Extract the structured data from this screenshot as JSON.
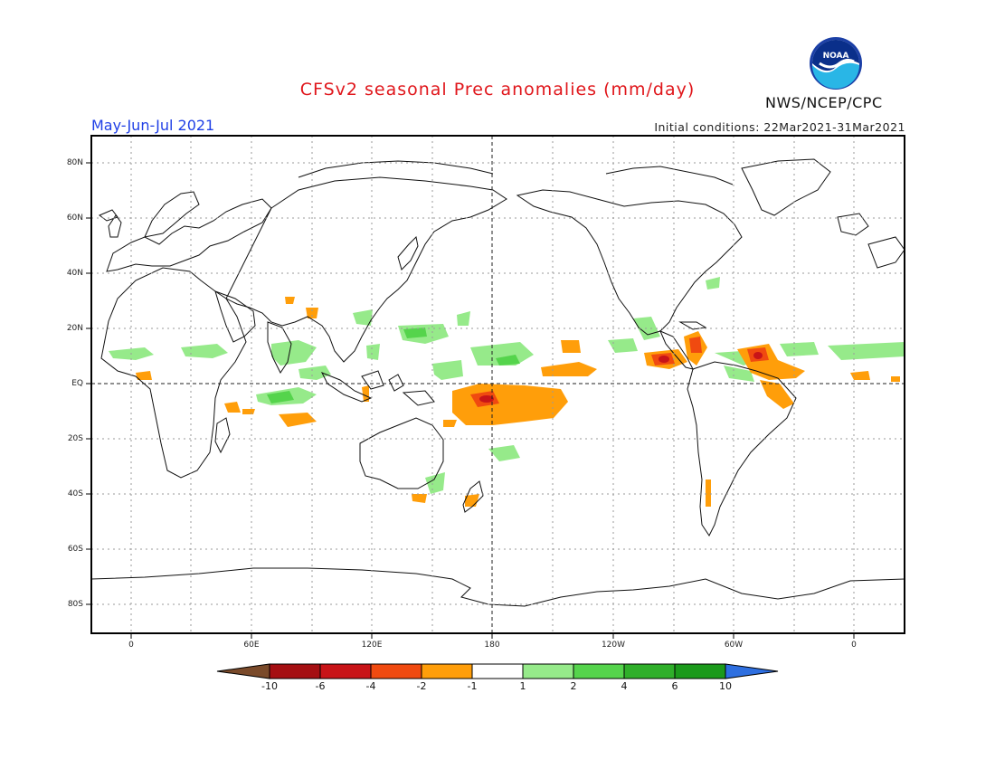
{
  "header": {
    "title": "CFSv2 seasonal Prec anomalies (mm/day)",
    "season": "May-Jun-Jul 2021",
    "initial_conditions": "Initial conditions: 22Mar2021-31Mar2021",
    "agency": "NWS/NCEP/CPC"
  },
  "logo": {
    "icon": "noaa-logo-icon",
    "text": "NOAA"
  },
  "map": {
    "lat_labels": [
      "80N",
      "60N",
      "40N",
      "20N",
      "EQ",
      "20S",
      "40S",
      "60S",
      "80S"
    ],
    "lon_labels": [
      "0",
      "60E",
      "120E",
      "180",
      "120W",
      "60W",
      "0"
    ],
    "colors": {
      "dry_extreme": "#7a4a2a",
      "dry_strong": "#bf0f14",
      "dry_high": "#e83a10",
      "dry_mid": "#ff9e0a",
      "neutral": "#ffffff",
      "wet_low": "#96ea8a",
      "wet_mid": "#4fd14a",
      "wet_high": "#1fa51f",
      "wet_extreme": "#2e6fe0",
      "land_outline": "#111111"
    }
  },
  "colorbar": {
    "labels": [
      "-10",
      "-6",
      "-4",
      "-2",
      "-1",
      "1",
      "2",
      "4",
      "6",
      "10"
    ],
    "colors": [
      "#7a4a2a",
      "#a50f12",
      "#c81418",
      "#f04a10",
      "#ff9e0a",
      "#ffffff",
      "#96ea8a",
      "#55d44c",
      "#2faf2a",
      "#1b9a1b",
      "#2e6fe0"
    ]
  }
}
